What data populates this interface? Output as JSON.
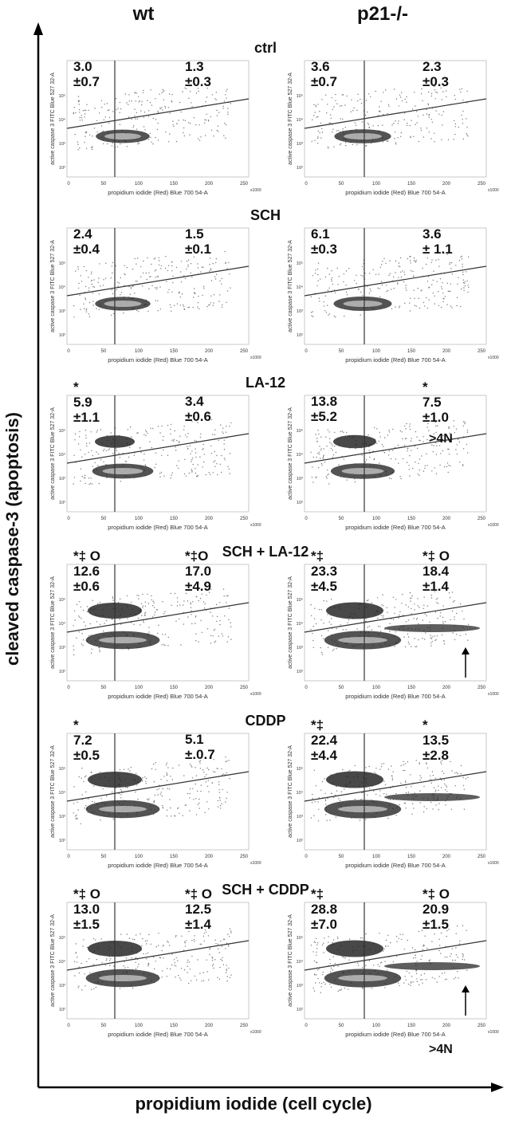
{
  "figure": {
    "x_axis_label": "propidium iodide (cell cycle)",
    "y_axis_label": "cleaved caspase-3 (apoptosis)"
  },
  "columns": [
    "wt",
    "p21-/-"
  ],
  "panel_axis_text": {
    "xlabel": "propidium iodide (Red) Blue 700 54-A",
    "ylabel": "active caspase 3 FITC Blue 527 32-A",
    "x_multiplier": "x1000",
    "x_ticks": [
      "0",
      "50",
      "100",
      "150",
      "200",
      "250"
    ],
    "y_ticks": [
      "10²",
      "10³",
      "10⁴",
      "10⁵"
    ]
  },
  "colors": {
    "axis": "#111111",
    "scatter": "#777777",
    "density": "#1a1a1a",
    "gate": "#333333"
  },
  "conditions": [
    {
      "label": "ctrl",
      "panels": [
        {
          "left": "3.0\n±0.7",
          "right": "1.3\n±0.3"
        },
        {
          "left": "3.6\n±0.7",
          "right": "2.3\n±0.3"
        }
      ]
    },
    {
      "label": "SCH",
      "panels": [
        {
          "left": "2.4\n±0.4",
          "right": "1.5\n±0.1"
        },
        {
          "left": "6.1\n±0.3",
          "right": "3.6\n± 1.1"
        }
      ]
    },
    {
      "label": "LA-12",
      "panels": [
        {
          "left": "*\n5.9\n±1.1",
          "right": "3.4\n±0.6"
        },
        {
          "left": "13.8\n±5.2",
          "right": "*\n7.5\n±1.0"
        }
      ]
    },
    {
      "label": "SCH + LA-12",
      "panels": [
        {
          "left": "*‡ O\n12.6\n±0.6",
          "right": "*‡O\n17.0\n±4.9"
        },
        {
          "left": "*‡\n23.3\n±4.5",
          "right": "*‡ O\n18.4\n±1.4"
        }
      ]
    },
    {
      "label": "CDDP",
      "panels": [
        {
          "left": "*\n7.2\n±0.5",
          "right": "5.1\n±.0.7"
        },
        {
          "left": "*‡\n22.4\n±4.4",
          "right": "*\n13.5\n±2.8"
        }
      ]
    },
    {
      "label": "SCH + CDDP",
      "panels": [
        {
          "left": "*‡ O\n13.0\n±1.5",
          "right": "*‡ O\n12.5\n±1.4"
        },
        {
          "left": "*‡\n28.8\n±7.0",
          "right": "*‡ O\n20.9\n±1.5"
        }
      ]
    }
  ],
  "annotations": {
    "polyploid_label": ">4N"
  },
  "chart_data": [
    {
      "type": "scatter",
      "condition": "ctrl",
      "genotype": "wt",
      "quadrant_percent": {
        "left": 3.0,
        "left_sd": 0.7,
        "right": 1.3,
        "right_sd": 0.3
      }
    },
    {
      "type": "scatter",
      "condition": "ctrl",
      "genotype": "p21-/-",
      "quadrant_percent": {
        "left": 3.6,
        "left_sd": 0.7,
        "right": 2.3,
        "right_sd": 0.3
      }
    },
    {
      "type": "scatter",
      "condition": "SCH",
      "genotype": "wt",
      "quadrant_percent": {
        "left": 2.4,
        "left_sd": 0.4,
        "right": 1.5,
        "right_sd": 0.1
      }
    },
    {
      "type": "scatter",
      "condition": "SCH",
      "genotype": "p21-/-",
      "quadrant_percent": {
        "left": 6.1,
        "left_sd": 0.3,
        "right": 3.6,
        "right_sd": 1.1
      }
    },
    {
      "type": "scatter",
      "condition": "LA-12",
      "genotype": "wt",
      "quadrant_percent": {
        "left": 5.9,
        "left_sd": 1.1,
        "right": 3.4,
        "right_sd": 0.6
      }
    },
    {
      "type": "scatter",
      "condition": "LA-12",
      "genotype": "p21-/-",
      "quadrant_percent": {
        "left": 13.8,
        "left_sd": 5.2,
        "right": 7.5,
        "right_sd": 1.0
      }
    },
    {
      "type": "scatter",
      "condition": "SCH + LA-12",
      "genotype": "wt",
      "quadrant_percent": {
        "left": 12.6,
        "left_sd": 0.6,
        "right": 17.0,
        "right_sd": 4.9
      }
    },
    {
      "type": "scatter",
      "condition": "SCH + LA-12",
      "genotype": "p21-/-",
      "quadrant_percent": {
        "left": 23.3,
        "left_sd": 4.5,
        "right": 18.4,
        "right_sd": 1.4
      }
    },
    {
      "type": "scatter",
      "condition": "CDDP",
      "genotype": "wt",
      "quadrant_percent": {
        "left": 7.2,
        "left_sd": 0.5,
        "right": 5.1,
        "right_sd": 0.7
      }
    },
    {
      "type": "scatter",
      "condition": "CDDP",
      "genotype": "p21-/-",
      "quadrant_percent": {
        "left": 22.4,
        "left_sd": 4.4,
        "right": 13.5,
        "right_sd": 2.8
      }
    },
    {
      "type": "scatter",
      "condition": "SCH + CDDP",
      "genotype": "wt",
      "quadrant_percent": {
        "left": 13.0,
        "left_sd": 1.5,
        "right": 12.5,
        "right_sd": 1.4
      }
    },
    {
      "type": "scatter",
      "condition": "SCH + CDDP",
      "genotype": "p21-/-",
      "quadrant_percent": {
        "left": 28.8,
        "left_sd": 7.0,
        "right": 20.9,
        "right_sd": 1.5
      }
    }
  ]
}
